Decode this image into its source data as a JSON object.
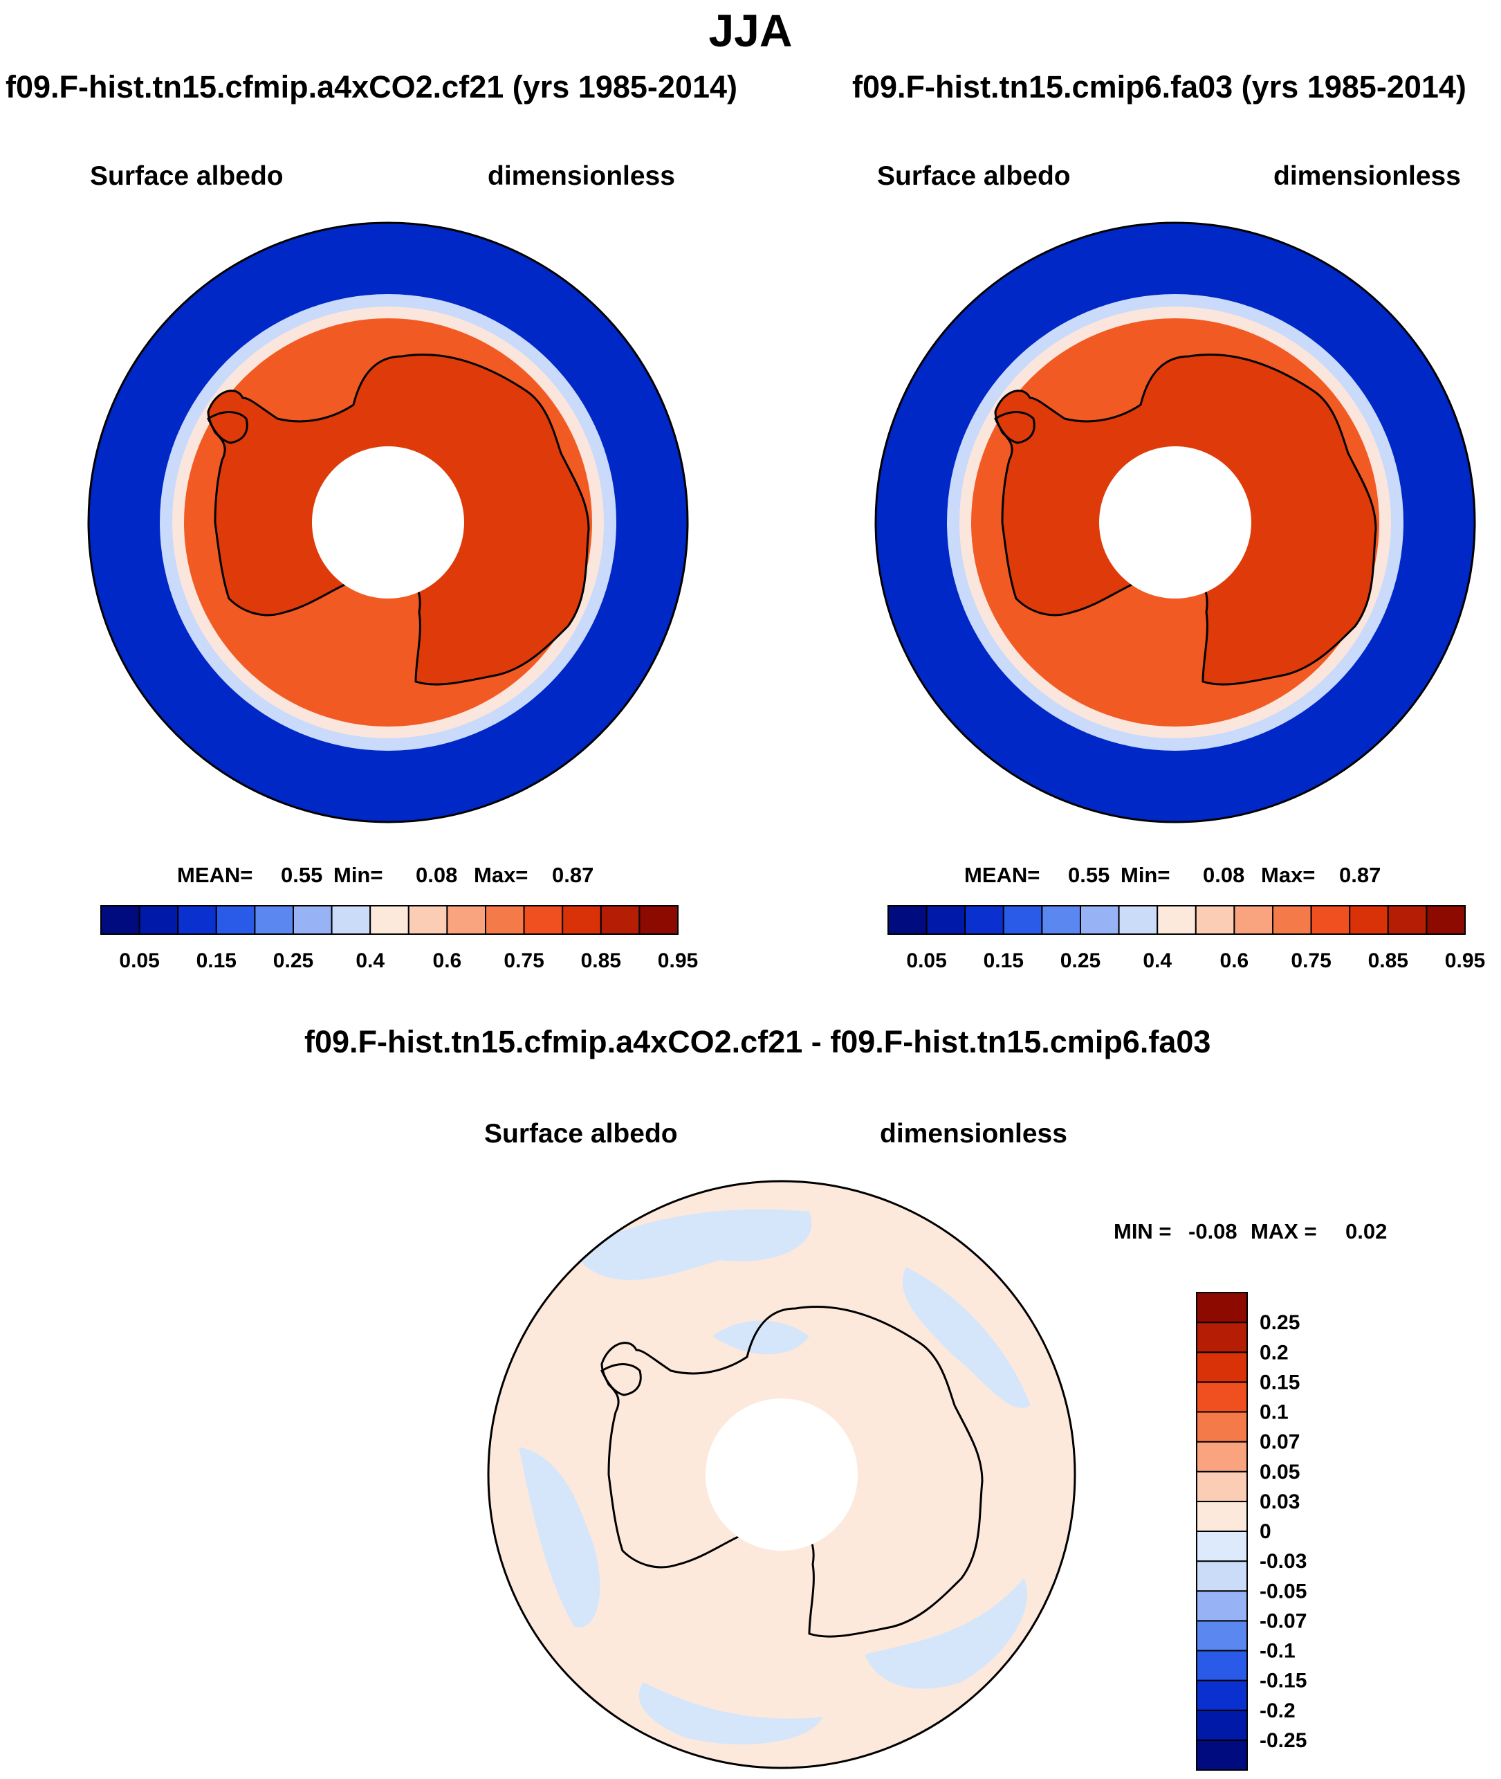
{
  "figure": {
    "title": "JJA",
    "diff_title": "f09.F-hist.tn15.cfmip.a4xCO2.cf21 - f09.F-hist.tn15.cmip6.fa03"
  },
  "panels": [
    {
      "case": "f09.F-hist.tn15.cfmip.a4xCO2.cf21 (yrs 1985-2014)",
      "variable": "Surface albedo",
      "units": "dimensionless",
      "stats": {
        "mean_label": "MEAN=",
        "mean": "0.55",
        "min_label": "Min=",
        "min": "0.08",
        "max_label": "Max=",
        "max": "0.87"
      }
    },
    {
      "case": "f09.F-hist.tn15.cmip6.fa03 (yrs 1985-2014)",
      "variable": "Surface albedo",
      "units": "dimensionless",
      "stats": {
        "mean_label": "MEAN=",
        "mean": "0.55",
        "min_label": "Min=",
        "min": "0.08",
        "max_label": "Max=",
        "max": "0.87"
      }
    },
    {
      "variable": "Surface albedo",
      "units": "dimensionless",
      "stats": {
        "min_label": "MIN =",
        "min": "-0.08",
        "max_label": "MAX =",
        "max": "0.02"
      }
    }
  ],
  "colorbars": {
    "main": {
      "colors": [
        "#000b80",
        "#0019a8",
        "#0a30d0",
        "#2a5ae8",
        "#5a87f0",
        "#97b2f5",
        "#cbdcf9",
        "#fde9dc",
        "#fccdb5",
        "#f9a37f",
        "#f57a4a",
        "#f05020",
        "#da3208",
        "#b51e04",
        "#8c0a00"
      ],
      "labels": [
        "0.05",
        "0.15",
        "0.25",
        "0.4",
        "0.6",
        "0.75",
        "0.85",
        "0.95"
      ]
    },
    "diff": {
      "colors": [
        "#000b80",
        "#0019a8",
        "#0a30d0",
        "#2a5ae8",
        "#5a87f0",
        "#97b2f5",
        "#cbdcf9",
        "#dceafb",
        "#fde9dc",
        "#fccdb5",
        "#f9a37f",
        "#f57a4a",
        "#f05020",
        "#da3208",
        "#b51e04",
        "#8c0a00"
      ],
      "labels": [
        "0.25",
        "0.2",
        "0.15",
        "0.1",
        "0.07",
        "0.05",
        "0.03",
        "0",
        "-0.03",
        "-0.05",
        "-0.07",
        "-0.1",
        "-0.15",
        "-0.2",
        "-0.25"
      ]
    }
  },
  "map_colors": {
    "ocean": "#0028c6",
    "ice_outer": "#f25a24",
    "continent": "#df3a0a",
    "white_band": "#fbe6dd",
    "light_blue": "#c9dafb",
    "diff_base": "#fde9dc",
    "diff_neg": "#d6e6fa",
    "coast": "#000000"
  }
}
